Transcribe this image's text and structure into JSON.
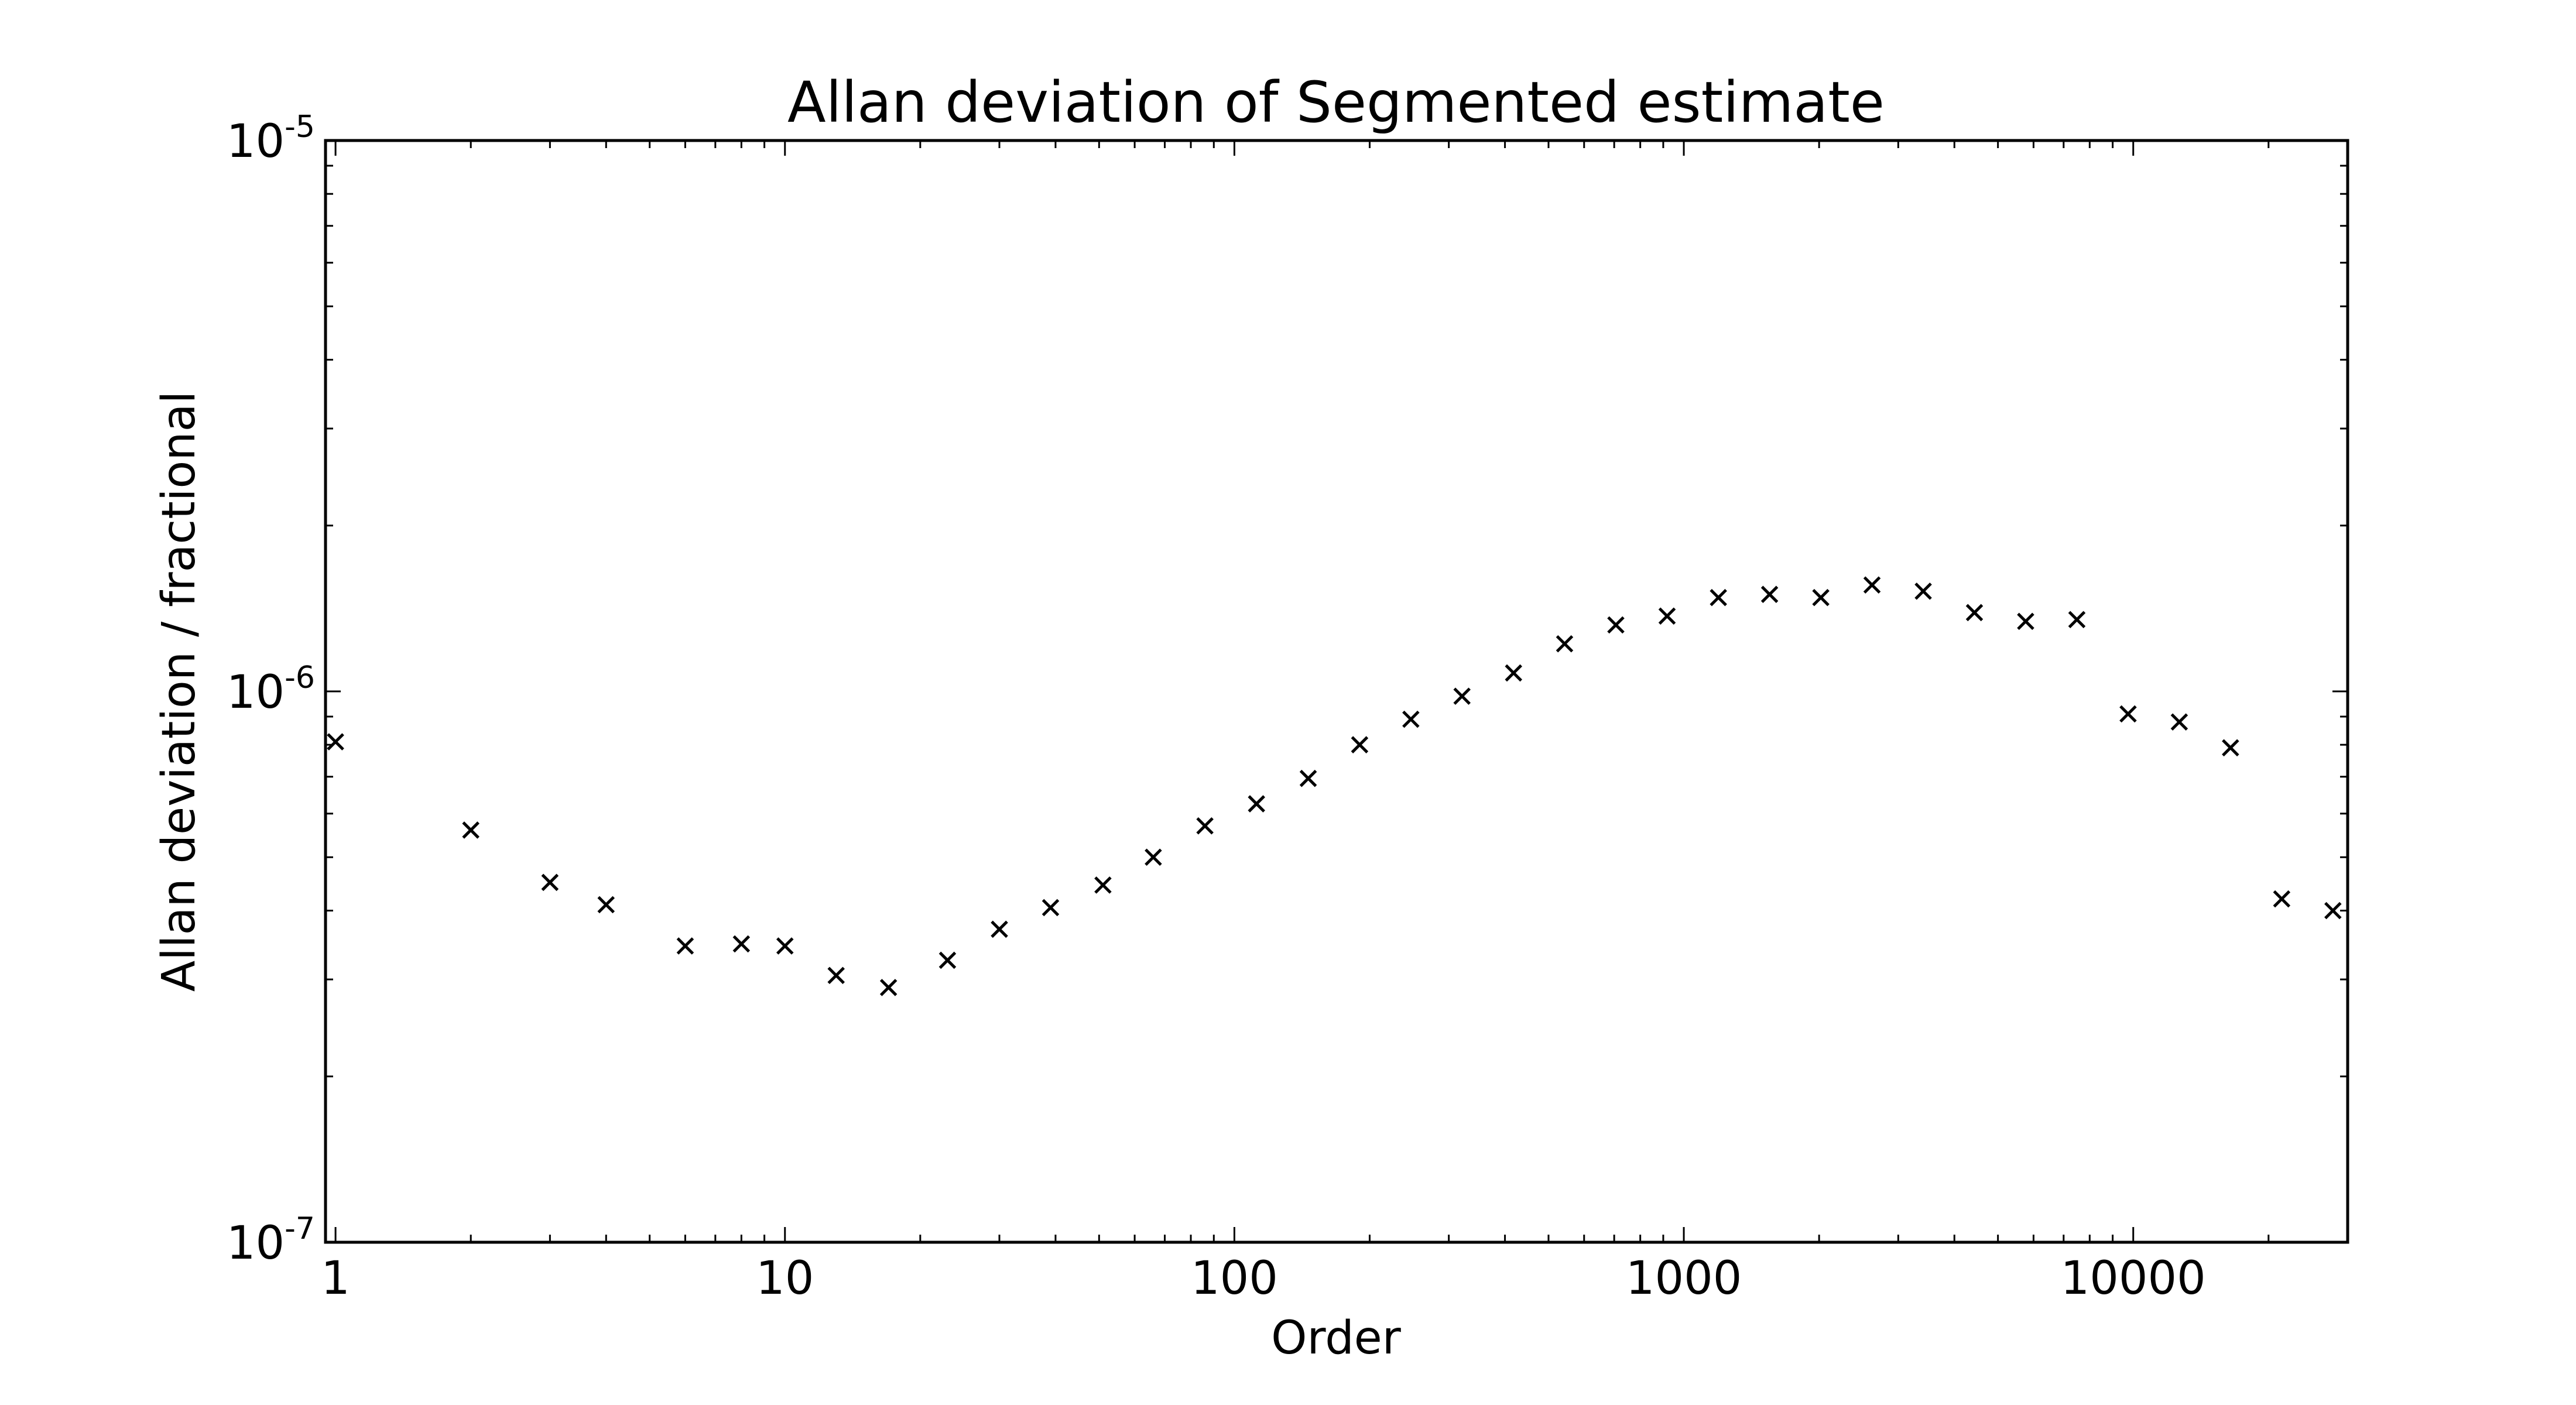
{
  "chart_data": {
    "type": "scatter",
    "title": "Allan deviation of Segmented estimate",
    "xlabel": "Order",
    "ylabel": "Allan deviation / fractional",
    "xscale": "log",
    "yscale": "log",
    "xlim": [
      0.95,
      30000
    ],
    "ylim": [
      1e-07,
      1e-05
    ],
    "x_ticks": [
      {
        "value": 1,
        "label": "1"
      },
      {
        "value": 10,
        "label": "10"
      },
      {
        "value": 100,
        "label": "100"
      },
      {
        "value": 1000,
        "label": "1000"
      },
      {
        "value": 10000,
        "label": "10000"
      }
    ],
    "y_ticks": [
      {
        "value": 1e-07,
        "base": "10",
        "exp": "-7"
      },
      {
        "value": 1e-06,
        "base": "10",
        "exp": "-6"
      },
      {
        "value": 1e-05,
        "base": "10",
        "exp": "-5"
      }
    ],
    "marker": "x",
    "marker_color": "#000000",
    "grid": false,
    "points": [
      {
        "x": 1,
        "y": 8.1e-07
      },
      {
        "x": 2,
        "y": 5.6e-07
      },
      {
        "x": 3,
        "y": 4.5e-07
      },
      {
        "x": 4,
        "y": 4.1e-07
      },
      {
        "x": 6,
        "y": 3.45e-07
      },
      {
        "x": 8,
        "y": 3.48e-07
      },
      {
        "x": 10,
        "y": 3.45e-07
      },
      {
        "x": 13,
        "y": 3.05e-07
      },
      {
        "x": 17,
        "y": 2.9e-07
      },
      {
        "x": 23,
        "y": 3.25e-07
      },
      {
        "x": 30,
        "y": 3.7e-07
      },
      {
        "x": 39,
        "y": 4.05e-07
      },
      {
        "x": 51,
        "y": 4.45e-07
      },
      {
        "x": 66,
        "y": 5e-07
      },
      {
        "x": 86,
        "y": 5.7e-07
      },
      {
        "x": 112,
        "y": 6.25e-07
      },
      {
        "x": 146,
        "y": 6.95e-07
      },
      {
        "x": 190,
        "y": 8e-07
      },
      {
        "x": 247,
        "y": 8.9e-07
      },
      {
        "x": 321,
        "y": 9.8e-07
      },
      {
        "x": 418,
        "y": 1.08e-06
      },
      {
        "x": 543,
        "y": 1.22e-06
      },
      {
        "x": 706,
        "y": 1.32e-06
      },
      {
        "x": 918,
        "y": 1.37e-06
      },
      {
        "x": 1194,
        "y": 1.48e-06
      },
      {
        "x": 1552,
        "y": 1.5e-06
      },
      {
        "x": 2018,
        "y": 1.48e-06
      },
      {
        "x": 2623,
        "y": 1.56e-06
      },
      {
        "x": 3410,
        "y": 1.52e-06
      },
      {
        "x": 4433,
        "y": 1.39e-06
      },
      {
        "x": 5763,
        "y": 1.34e-06
      },
      {
        "x": 7492,
        "y": 1.35e-06
      },
      {
        "x": 9740,
        "y": 9.1e-07
      },
      {
        "x": 12662,
        "y": 8.8e-07
      },
      {
        "x": 16460,
        "y": 7.9e-07
      },
      {
        "x": 21398,
        "y": 4.2e-07
      },
      {
        "x": 27818,
        "y": 4e-07
      }
    ]
  }
}
